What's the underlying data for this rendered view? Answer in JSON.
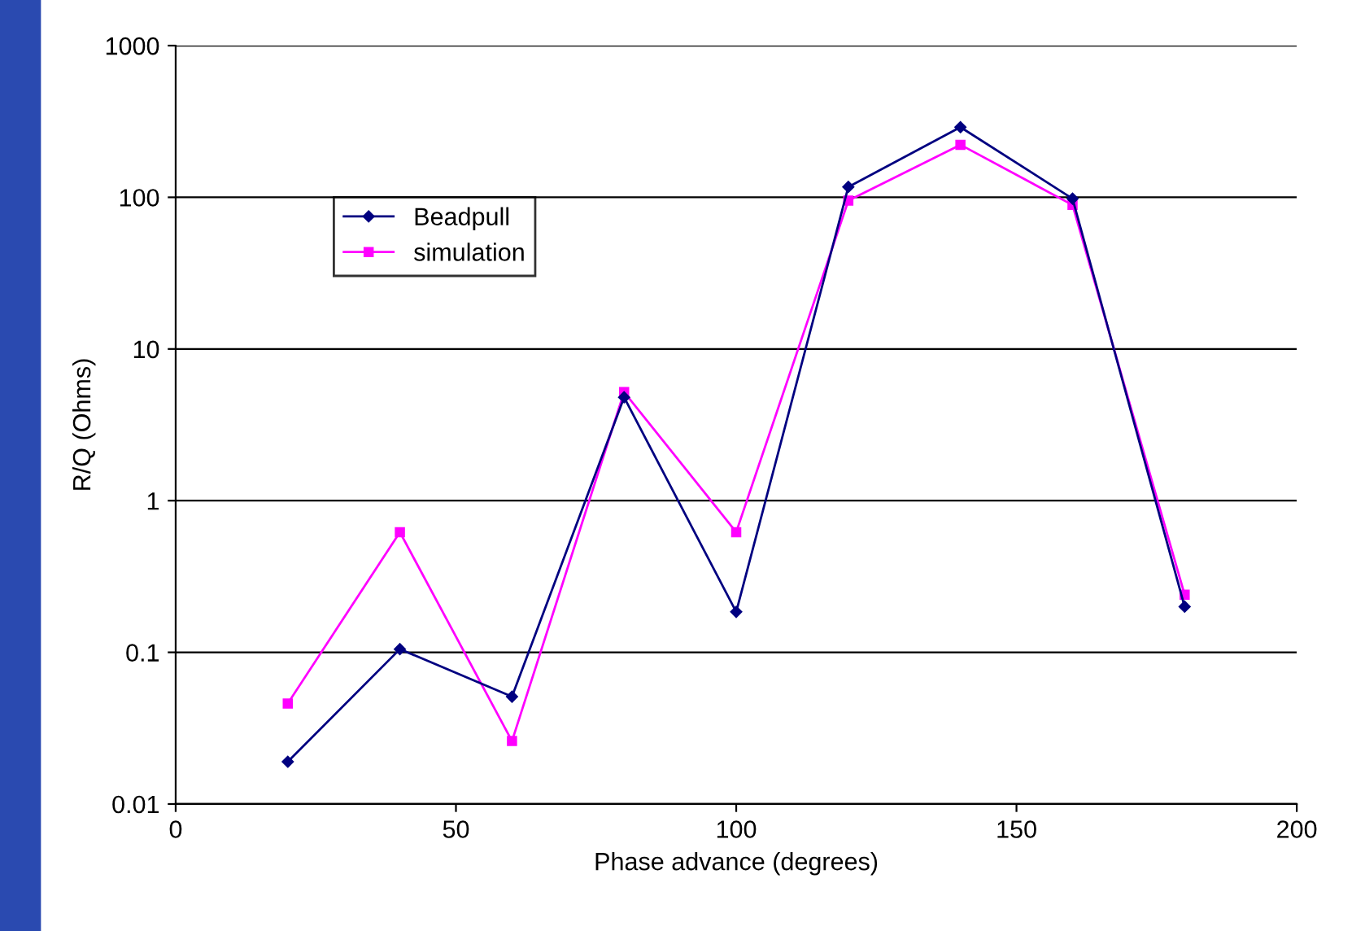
{
  "chart_data": {
    "type": "line",
    "xlabel": "Phase advance (degrees)",
    "ylabel": "R/Q (Ohms)",
    "x": [
      20,
      40,
      60,
      80,
      100,
      120,
      140,
      160,
      180
    ],
    "series": [
      {
        "name": "Beadpull",
        "color": "#000080",
        "marker": "diamond",
        "values": [
          0.019,
          0.105,
          0.051,
          4.8,
          0.185,
          117,
          290,
          98,
          0.2
        ]
      },
      {
        "name": "simulation",
        "color": "#ff00ff",
        "marker": "square",
        "values": [
          0.046,
          0.62,
          0.026,
          5.2,
          0.62,
          95,
          222,
          89,
          0.24
        ]
      }
    ],
    "log": "y",
    "xlim": [
      0,
      200
    ],
    "xticks": [
      0,
      50,
      100,
      150,
      200
    ],
    "ylim": [
      0.01,
      1000
    ],
    "yticks": [
      0.01,
      0.1,
      1,
      10,
      100,
      1000
    ],
    "grid": "y",
    "legend": "top left",
    "line_style": "solid"
  }
}
